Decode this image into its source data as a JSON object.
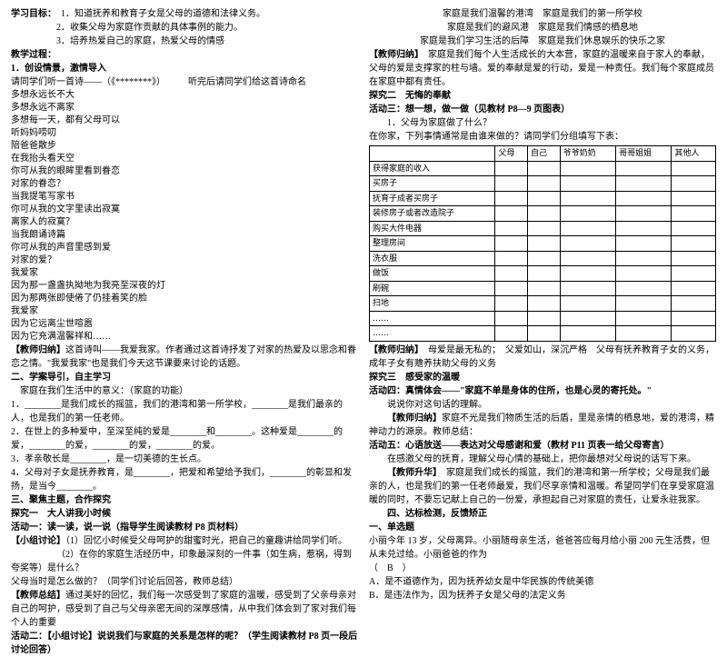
{
  "left": {
    "objTitle": "学习目标：",
    "obj1": "1．知道抚养和教育子女是父母的道德和法律义务。",
    "obj2": "2．收集父母为家庭作贡献的具体事例的能力。",
    "obj3": "3．培养热爱自己的家庭，热爱父母的情感",
    "processTitle": "教学过程：",
    "s1Title": "1．创设情景，激情导入",
    "s1Line1": "请同学们听一首诗——（《********》）　　　听完后请同学们给这首诗命名",
    "poem": [
      "多想永远长不大",
      "多想永远不离家",
      "多想每一天，都有父母可以",
      "听妈妈唠叨",
      "陪爸爸散步",
      "在我抬头看天空",
      "你可从我的眼眸里看到眷恋",
      "对家的眷恋？",
      "当我提笔写家书",
      "你可从我的文字里读出寂寞",
      "离家人的寂寞？",
      "当我朗诵诗篇",
      "你可从我的声音里感到爱",
      "对家的爱？",
      "我爱家",
      "因为那一盏盏执拗地为我亮至深夜的灯",
      "因为那两张即使倦了仍挂着笑的脸",
      "我爱家",
      "因为它远离尘世喧嚣",
      "因为它充满温馨祥和……"
    ],
    "guideTitle": "【教师归纳】",
    "guideText": "这首诗叫——我爱我家。作者通过这首诗抒发了对家的热爱及以思念和眷恋之情。\"我爱我家\"也是我们今天这节课要来讨论的话题。",
    "s2Title": "二、学案导引，自主学习",
    "s2Sub": "家庭在我们生活中的意义：（家庭的功能）",
    "s2L1a": "1．________是我们成长的摇篮，我们的港湾和第一所学校，________是我们最亲的人，也是我们的第一任老师。",
    "s2L2": "2．在世上的多种爱中，至深至纯的爱是________和________。这种爱是________的爱，________的爱，________的爱，________的爱。",
    "s2L3": "3．孝亲敬长是________，是一切美德的生长点。",
    "s2L4": "4．父母对子女是抚养教育，是________，把爱和希望给予我们，________的彰显和发扬，是当今________。",
    "s3Title": "三、聚焦主题，合作探究",
    "t1": "探究一　大人讲我小时候",
    "a1": "活动一：读一读，说一说（指导学生阅读教材 P8 页材料）",
    "d1Title": "【小组讨论】",
    "d1a": "（1）回忆小时候受父母呵护的甜蜜时光，把自己的童趣讲给同学们听。",
    "d1b": "（2）在你的家庭生活经历中，印象最深刻的一件事（如生病，惹祸，得到夸奖等）是什么？",
    "d1c": "父母当时是怎么做的？（同学们讨论后回答，教师总结）",
    "sumTitle": "【教师总结】",
    "sumText": "通过美好的回忆，我们每一次感受到了家庭的温暖，感受到了父亲母亲对自己的呵护，感受到了自己与父母亲密无间的深厚感情，从中我们体会到了家对我们每个人的重要",
    "a2": "活动二：【小组讨论】说说我们与家庭的关系是怎样的呢？（学生阅读教材 P8 页一段后讨论回答）"
  },
  "right": {
    "top1": "家庭是我们温馨的港湾　家庭是我们的第一所学校",
    "top2": "家庭是我们的避风港　家庭是我们情感的栖息地",
    "top3": "家庭是我们学习生活的后障　家庭是我们休息娱乐的快乐之家",
    "g1Title": "【教师归纳】",
    "g1Text": "家庭是我们每个人生活成长的大本营，家庭的温暖来自于家人的奉献，父母的爱是支撑家的柱与墙。爱的奉献是爱的行动，爱是一种责任。我们每个家庭成员在家庭中都有责任。",
    "t2": "探究二　无悔的奉献",
    "a3": "活动三：想一想，做一做（见教材 P8—9 页图表）",
    "q1": "1．父母为家庭做了什么？",
    "q2": "在你家，下列事情通常是由谁来做的？请同学们分组填写下表：",
    "tableHeaders": [
      "",
      "父母",
      "自己",
      "爷爷奶奶",
      "哥哥姐姐",
      "其他人"
    ],
    "tableRows": [
      "获得家庭的收入",
      "买房子",
      "抚育子成者买房子",
      "装修房子或者改造院子",
      "购买大件电器",
      "整理房间",
      "洗衣服",
      "做饭",
      "刷碗",
      "扫地",
      "……",
      "……"
    ],
    "g2Title": "【教师归纳】",
    "g2Text": "母爱是最无私的；　父爱如山，深沉严格　父母有抚养教育子女的义务，成年子女有赡养扶助父母的义务",
    "t3": "探究三　感受家的温暖",
    "a4": "活动四：真情体会——\"家庭不单是身体的住所，也是心灵的寄托处。\"",
    "a4q": "说说你对这句话的理解。",
    "g3Title": "【教师归纳】",
    "g3Text": "家庭不光是我们物质生活的后盾，里是亲情的栖息地，爱的港湾，精神动力的源泉。教师总结：",
    "a5": "活动五：心语放送——表达对父母感谢和爱（教材 P11 页表一给父母寄言）",
    "a5Text": "在感激父母的抚育，理解父母心情的基础上，把你最想对父母说的话写下来。",
    "g4Title": "【教师升华】",
    "g4Text": "家庭是我们成长的摇篮，我们的港湾和第一所学校；父母是我们最亲的人，也是我们的第一任老师最爱，我们尽享亲情和温暖。希望同学们在享受家庭温暖的同时，不要忘记献上自己的一份爱，承担起自己对家庭的责任，让爱永驻我家。",
    "s4Title": "四、达标检测，反馈矫正",
    "sel": "一、单选题",
    "q": "小丽今年 13 岁，父母离异。小丽随母亲生活，爸爸答应每月给小丽 200 元生活费，但从未兑过给。小丽爸爸的作为",
    "ans": "（　B　）",
    "optA": "A．是不道德作为，因为抚养幼女是中华民族的传统美德",
    "optB": "B．是违法作为，因为抚养子女是父母的法定义务"
  }
}
